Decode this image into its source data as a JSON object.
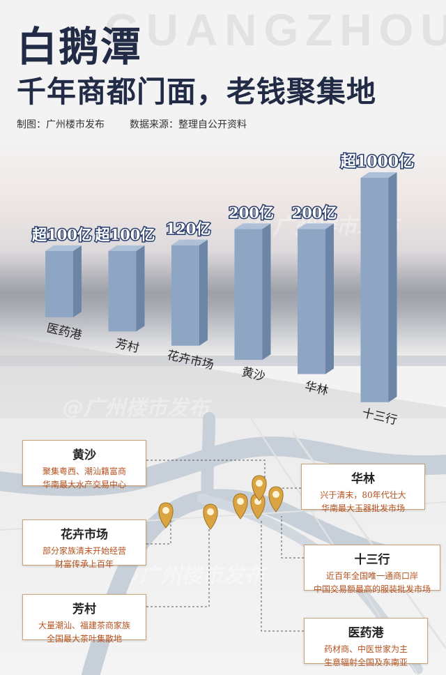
{
  "header": {
    "bg_word": "GUANGZHOU",
    "title": "白鹅潭",
    "subtitle": "千年商都门面，老钱聚集地",
    "credit_left": "制图：广州楼市发布",
    "credit_right": "数据来源：整理自公开资料"
  },
  "watermarks": [
    "@广州楼市发布",
    "@广州楼市发布",
    "@广州楼市发布"
  ],
  "colors": {
    "bar_front": "#8fa5c4",
    "bar_side": "#6c84a6",
    "bar_top": "#aebfd8",
    "title": "#222b45",
    "accent": "#b4511f",
    "pin": "#d9a441"
  },
  "chart_data": {
    "type": "bar",
    "categories": [
      "医药港",
      "芳村",
      "花卉市场",
      "黄沙",
      "华林",
      "十三行"
    ],
    "values": [
      100,
      100,
      120,
      200,
      200,
      1000
    ],
    "value_labels": [
      "超100亿",
      "超100亿",
      "120亿",
      "200亿",
      "200亿",
      "超1000亿"
    ],
    "unit": "亿"
  },
  "map": {
    "cards": [
      {
        "name": "黄沙",
        "lines": [
          "聚集粤西、潮汕籍富商",
          "华南最大水产交易中心"
        ]
      },
      {
        "name": "花卉市场",
        "lines": [
          "部分家族清末开始经营",
          "财富传承上百年"
        ]
      },
      {
        "name": "芳村",
        "lines": [
          "大量潮汕、福建茶商家族",
          "全国最大茶叶集散地"
        ]
      },
      {
        "name": "华林",
        "lines": [
          "兴于清末，80年代壮大",
          "华南最大玉器批发市场"
        ]
      },
      {
        "name": "十三行",
        "lines": [
          "近百年全国唯一通商口岸",
          "中国交易额最高的服装批发市场"
        ]
      },
      {
        "name": "医药港",
        "lines": [
          "药材商、中医世家为主",
          "生意辐射全国及东南亚"
        ]
      }
    ]
  }
}
